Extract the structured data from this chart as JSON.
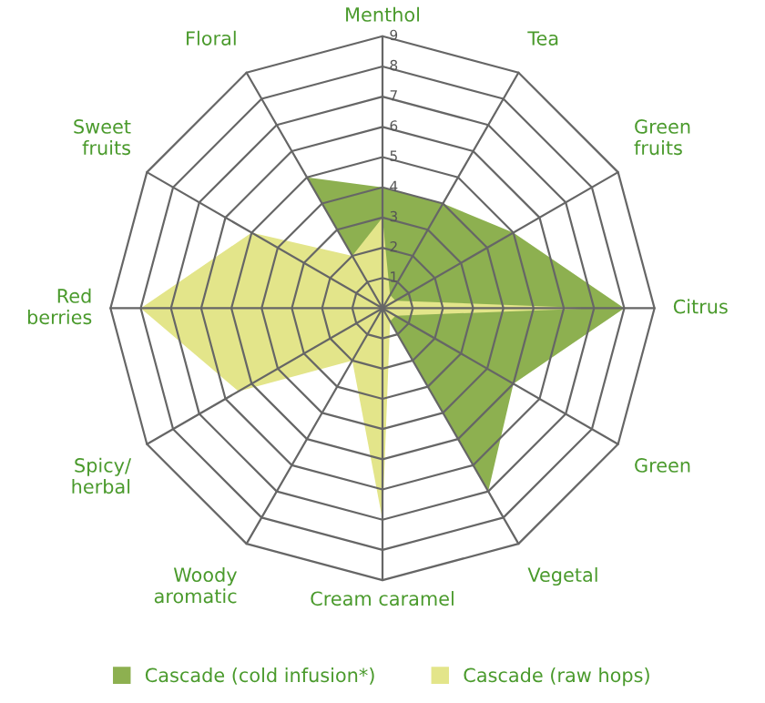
{
  "chart_data": {
    "type": "radar",
    "categories": [
      "Menthol",
      "Tea",
      "Green\nfruits",
      "Citrus",
      "Green",
      "Vegetal",
      "Cream caramel",
      "Woody\naromatic",
      "Spicy/\nherbal",
      "Red\nberries",
      "Sweet\nfruits",
      "Floral"
    ],
    "series": [
      {
        "name": "Cascade (cold infusion*)",
        "color": "#8db050",
        "values": [
          4,
          4,
          5,
          8,
          5,
          7,
          0,
          0,
          0,
          0,
          0,
          5
        ]
      },
      {
        "name": "Cascade (raw hops)",
        "color": "#e3e58a",
        "values": [
          3,
          0.5,
          0.5,
          7,
          0.5,
          0.5,
          7,
          2,
          5.5,
          8,
          5,
          2
        ]
      }
    ],
    "ylim": [
      0,
      9
    ],
    "yticks": [
      1,
      2,
      3,
      4,
      5,
      6,
      7,
      8,
      9
    ],
    "grid": true,
    "legend": "bottom"
  }
}
